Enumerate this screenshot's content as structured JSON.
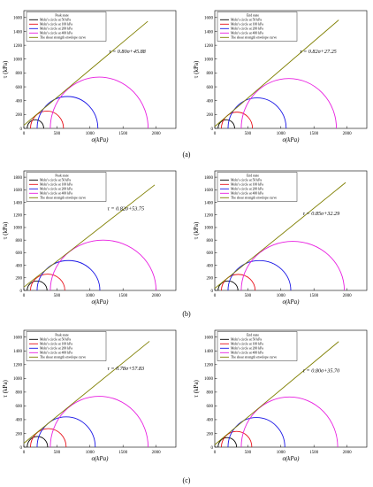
{
  "panel_labels": [
    "(a)",
    "(b)",
    "(c)"
  ],
  "colors": {
    "circle_50": "#000000",
    "circle_100": "#e8101a",
    "circle_200": "#1a16e6",
    "circle_400": "#e81ee0",
    "envelope": "#7f7f00",
    "axis": "#000000"
  },
  "legend_labels": [
    "Mohr's circle at 50 kPa",
    "Mohr's circle at 100 kPa",
    "Mohr's circle at 200 kPa",
    "Mohr's circle at 400 kPa",
    "The shear strength envelope curve"
  ],
  "chart_data": [
    {
      "type": "line",
      "panel": "(a)",
      "state": "Peak state",
      "xlabel": "σ(kPa)",
      "ylabel": "τ (kPa)",
      "xlim": [
        0,
        2300
      ],
      "ylim": [
        0,
        1700
      ],
      "xticks": [
        0,
        500,
        1000,
        1500,
        2000
      ],
      "yticks": [
        0,
        200,
        400,
        600,
        800,
        1000,
        1200,
        1400,
        1600
      ],
      "equation": "τ = 0.80σ+45.88",
      "slope": 0.8,
      "intercept": 45.88,
      "envelope_x_end": 1875,
      "circles": [
        {
          "pressure_kPa": 50,
          "sigma3": 50,
          "sigma1": 300
        },
        {
          "pressure_kPa": 100,
          "sigma3": 100,
          "sigma1": 600
        },
        {
          "pressure_kPa": 200,
          "sigma3": 200,
          "sigma1": 1120
        },
        {
          "pressure_kPa": 400,
          "sigma3": 400,
          "sigma1": 1880
        }
      ]
    },
    {
      "type": "line",
      "panel": "(a)",
      "state": "End state",
      "xlabel": "σ(kPa)",
      "ylabel": "τ (kPa)",
      "xlim": [
        0,
        2300
      ],
      "ylim": [
        0,
        1700
      ],
      "xticks": [
        0,
        500,
        1000,
        1500,
        2000
      ],
      "yticks": [
        0,
        200,
        400,
        600,
        800,
        1000,
        1200,
        1400,
        1600
      ],
      "equation": "τ = 0.82σ+27.25",
      "slope": 0.82,
      "intercept": 27.25,
      "envelope_x_end": 1875,
      "circles": [
        {
          "pressure_kPa": 50,
          "sigma3": 50,
          "sigma1": 300
        },
        {
          "pressure_kPa": 100,
          "sigma3": 100,
          "sigma1": 570
        },
        {
          "pressure_kPa": 200,
          "sigma3": 200,
          "sigma1": 1080
        },
        {
          "pressure_kPa": 400,
          "sigma3": 400,
          "sigma1": 1840
        }
      ]
    },
    {
      "type": "line",
      "panel": "(b)",
      "state": "Peak state",
      "xlabel": "σ(kPa)",
      "ylabel": "τ (kPa)",
      "xlim": [
        0,
        2300
      ],
      "ylim": [
        0,
        1900
      ],
      "xticks": [
        0,
        500,
        1000,
        1500,
        2000
      ],
      "yticks": [
        0,
        200,
        400,
        600,
        800,
        1000,
        1200,
        1400,
        1600,
        1800
      ],
      "equation": "τ = 0.82σ+53.75",
      "slope": 0.82,
      "intercept": 53.75,
      "envelope_x_end": 1980,
      "circles": [
        {
          "pressure_kPa": 50,
          "sigma3": 50,
          "sigma1": 350
        },
        {
          "pressure_kPa": 100,
          "sigma3": 100,
          "sigma1": 620
        },
        {
          "pressure_kPa": 200,
          "sigma3": 200,
          "sigma1": 1150
        },
        {
          "pressure_kPa": 400,
          "sigma3": 400,
          "sigma1": 2000
        }
      ]
    },
    {
      "type": "line",
      "panel": "(b)",
      "state": "End state",
      "xlabel": "σ(kPa)",
      "ylabel": "τ (kPa)",
      "xlim": [
        0,
        2300
      ],
      "ylim": [
        0,
        1900
      ],
      "xticks": [
        0,
        500,
        1000,
        1500,
        2000
      ],
      "yticks": [
        0,
        200,
        400,
        600,
        800,
        1000,
        1200,
        1400,
        1600,
        1800
      ],
      "equation": "τ = 0.85σ+32.29",
      "slope": 0.85,
      "intercept": 32.29,
      "envelope_x_end": 1980,
      "circles": [
        {
          "pressure_kPa": 50,
          "sigma3": 50,
          "sigma1": 350
        },
        {
          "pressure_kPa": 100,
          "sigma3": 100,
          "sigma1": 610
        },
        {
          "pressure_kPa": 200,
          "sigma3": 200,
          "sigma1": 1150
        },
        {
          "pressure_kPa": 400,
          "sigma3": 400,
          "sigma1": 1960
        }
      ]
    },
    {
      "type": "line",
      "panel": "(c)",
      "state": "Peak state",
      "xlabel": "σ(kPa)",
      "ylabel": "τ (kPa)",
      "xlim": [
        0,
        2300
      ],
      "ylim": [
        0,
        1700
      ],
      "xticks": [
        0,
        500,
        1000,
        1500,
        2000
      ],
      "yticks": [
        0,
        200,
        400,
        600,
        800,
        1000,
        1200,
        1400,
        1600
      ],
      "equation": "τ = 0.78σ+57.83",
      "slope": 0.78,
      "intercept": 57.83,
      "envelope_x_end": 1900,
      "circles": [
        {
          "pressure_kPa": 50,
          "sigma3": 50,
          "sigma1": 360
        },
        {
          "pressure_kPa": 100,
          "sigma3": 100,
          "sigma1": 640
        },
        {
          "pressure_kPa": 200,
          "sigma3": 200,
          "sigma1": 1080
        },
        {
          "pressure_kPa": 400,
          "sigma3": 400,
          "sigma1": 1880
        }
      ]
    },
    {
      "type": "line",
      "panel": "(c)",
      "state": "End state",
      "xlabel": "σ(kPa)",
      "ylabel": "τ (kPa)",
      "xlim": [
        0,
        2300
      ],
      "ylim": [
        0,
        1700
      ],
      "xticks": [
        0,
        500,
        1000,
        1500,
        2000
      ],
      "yticks": [
        0,
        200,
        400,
        600,
        800,
        1000,
        1200,
        1400,
        1600
      ],
      "equation": "τ = 0.80σ+35.70",
      "slope": 0.8,
      "intercept": 35.7,
      "envelope_x_end": 1875,
      "circles": [
        {
          "pressure_kPa": 50,
          "sigma3": 50,
          "sigma1": 330
        },
        {
          "pressure_kPa": 100,
          "sigma3": 100,
          "sigma1": 560
        },
        {
          "pressure_kPa": 200,
          "sigma3": 200,
          "sigma1": 1060
        },
        {
          "pressure_kPa": 400,
          "sigma3": 400,
          "sigma1": 1860
        }
      ]
    }
  ]
}
